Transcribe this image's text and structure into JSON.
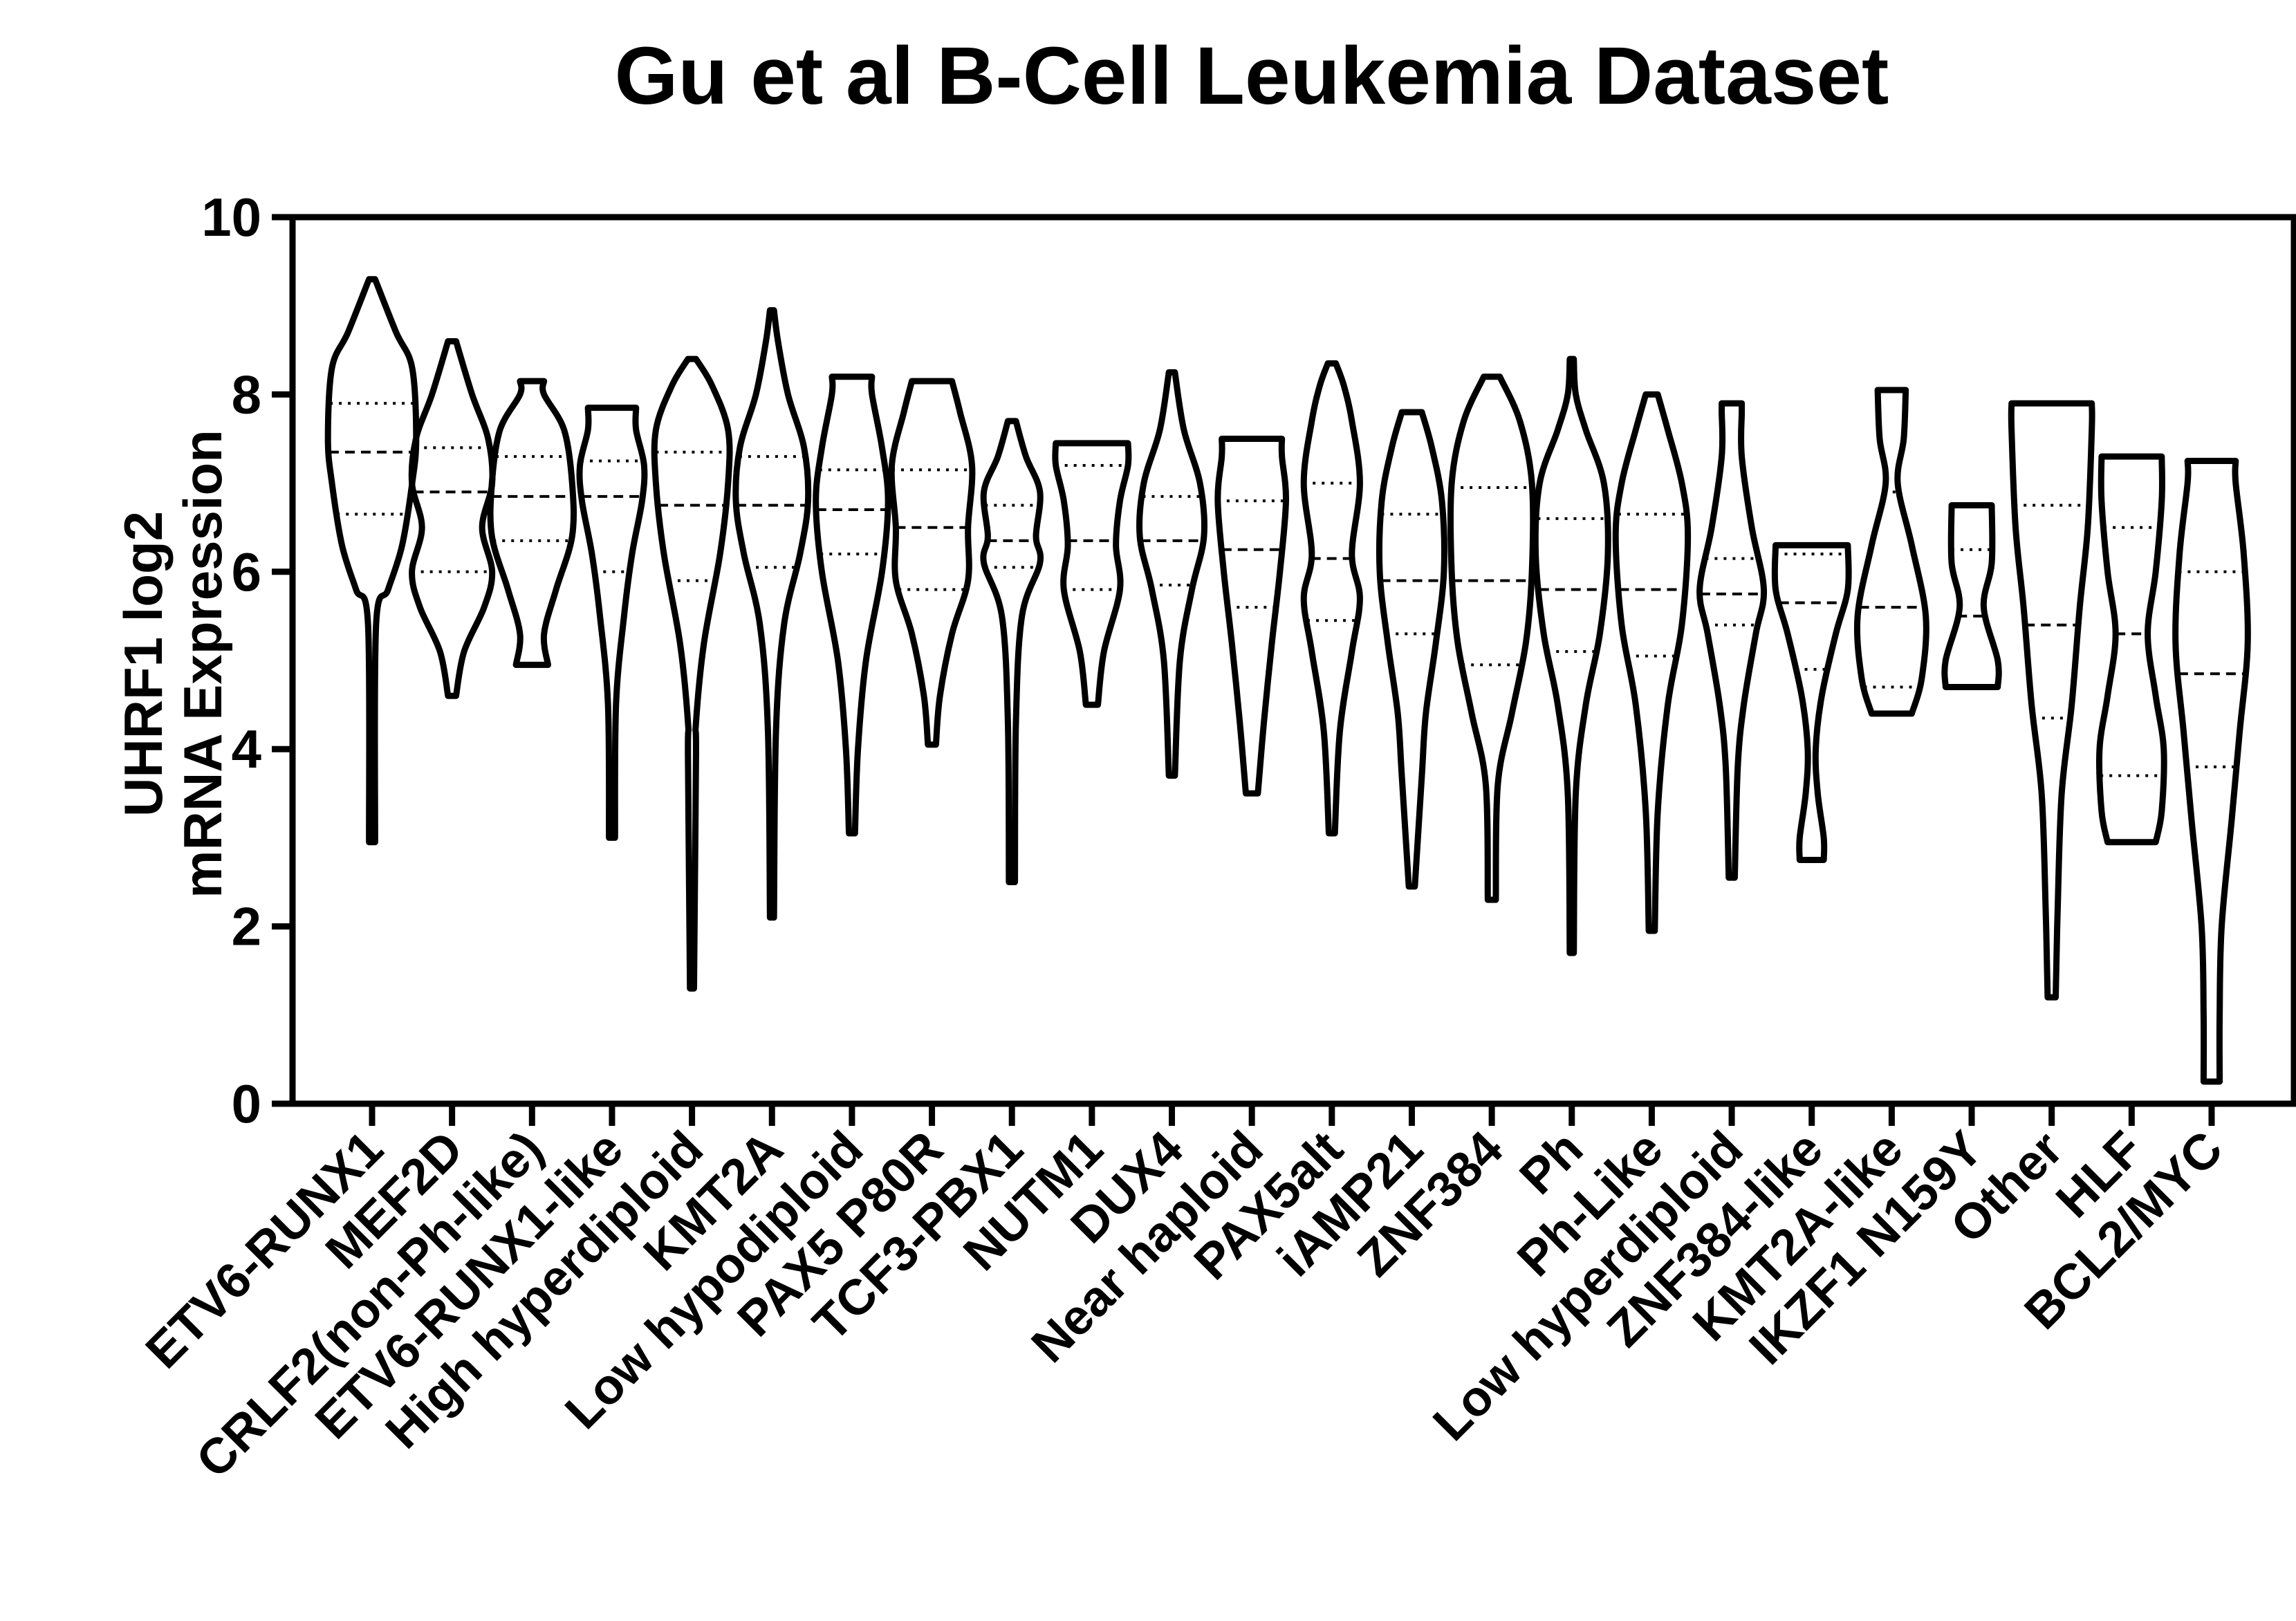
{
  "chart_data": {
    "type": "violin",
    "title": "Gu et al B-Cell Leukemia Dataset",
    "ylabel_lines": [
      "UHRF1 log2",
      "mRNA Expression"
    ],
    "xlabel": "",
    "ylim": [
      0,
      10
    ],
    "yticks": [
      0,
      2,
      4,
      6,
      8,
      10
    ],
    "grid": false,
    "line_color": "#000000",
    "categories": [
      "ETV6-RUNX1",
      "MEF2D",
      "CRLF2(non-Ph-like)",
      "ETV6-RUNX1-like",
      "High hyperdiploid",
      "KMT2A",
      "Low hypodiploid",
      "PAX5 P80R",
      "TCF3-PBX1",
      "NUTM1",
      "DUX4",
      "Near haploid",
      "PAX5alt",
      "iAMP21",
      "ZNF384",
      "Ph",
      "Ph-Like",
      "Low hyperdiploid",
      "ZNF384-like",
      "KMT2A-like",
      "IKZF1 N159Y",
      "Other",
      "HLF",
      "BCL2/MYC"
    ],
    "series": [
      {
        "min": 2.95,
        "max": 9.3,
        "q1": 6.65,
        "median": 7.35,
        "q3": 7.9,
        "shape": [
          [
            2.95,
            0.015
          ],
          [
            5.4,
            0.02
          ],
          [
            5.8,
            0.08
          ],
          [
            6.3,
            0.15
          ],
          [
            7.0,
            0.2
          ],
          [
            7.5,
            0.22
          ],
          [
            8.3,
            0.2
          ],
          [
            8.7,
            0.12
          ],
          [
            9.3,
            0.015
          ]
        ]
      },
      {
        "min": 4.6,
        "max": 8.6,
        "q1": 6.0,
        "median": 6.9,
        "q3": 7.4,
        "shape": [
          [
            4.6,
            0.02
          ],
          [
            5.1,
            0.06
          ],
          [
            5.6,
            0.16
          ],
          [
            6.0,
            0.2
          ],
          [
            6.5,
            0.15
          ],
          [
            7.0,
            0.2
          ],
          [
            7.5,
            0.18
          ],
          [
            8.0,
            0.1
          ],
          [
            8.6,
            0.02
          ]
        ]
      },
      {
        "min": 4.95,
        "max": 8.15,
        "q1": 6.35,
        "median": 6.85,
        "q3": 7.3,
        "shape": [
          [
            4.95,
            0.08
          ],
          [
            5.3,
            0.06
          ],
          [
            5.8,
            0.12
          ],
          [
            6.4,
            0.2
          ],
          [
            7.0,
            0.2
          ],
          [
            7.6,
            0.16
          ],
          [
            8.0,
            0.06
          ],
          [
            8.15,
            0.06
          ]
        ]
      },
      {
        "min": 3.0,
        "max": 7.85,
        "q1": 6.0,
        "median": 6.85,
        "q3": 7.25,
        "shape": [
          [
            3.0,
            0.015
          ],
          [
            4.5,
            0.02
          ],
          [
            5.5,
            0.06
          ],
          [
            6.2,
            0.1
          ],
          [
            6.8,
            0.15
          ],
          [
            7.2,
            0.16
          ],
          [
            7.6,
            0.12
          ],
          [
            7.85,
            0.12
          ]
        ]
      },
      {
        "min": 1.3,
        "max": 8.4,
        "q1": 5.9,
        "median": 6.75,
        "q3": 7.35,
        "shape": [
          [
            1.3,
            0.01
          ],
          [
            3.9,
            0.02
          ],
          [
            4.3,
            0.02
          ],
          [
            5.2,
            0.06
          ],
          [
            6.2,
            0.14
          ],
          [
            7.0,
            0.18
          ],
          [
            7.6,
            0.18
          ],
          [
            8.1,
            0.1
          ],
          [
            8.4,
            0.02
          ]
        ]
      },
      {
        "min": 2.1,
        "max": 8.95,
        "q1": 6.05,
        "median": 6.75,
        "q3": 7.3,
        "shape": [
          [
            2.1,
            0.01
          ],
          [
            4.2,
            0.02
          ],
          [
            5.4,
            0.06
          ],
          [
            6.2,
            0.14
          ],
          [
            6.8,
            0.18
          ],
          [
            7.4,
            0.16
          ],
          [
            8.0,
            0.08
          ],
          [
            8.6,
            0.03
          ],
          [
            8.95,
            0.01
          ]
        ]
      },
      {
        "min": 3.05,
        "max": 8.2,
        "q1": 6.2,
        "median": 6.7,
        "q3": 7.15,
        "shape": [
          [
            3.05,
            0.015
          ],
          [
            4.0,
            0.03
          ],
          [
            5.0,
            0.07
          ],
          [
            6.0,
            0.15
          ],
          [
            6.8,
            0.18
          ],
          [
            7.4,
            0.15
          ],
          [
            8.0,
            0.1
          ],
          [
            8.2,
            0.1
          ]
        ]
      },
      {
        "min": 4.05,
        "max": 8.15,
        "q1": 5.8,
        "median": 6.5,
        "q3": 7.15,
        "shape": [
          [
            4.05,
            0.02
          ],
          [
            4.6,
            0.04
          ],
          [
            5.3,
            0.1
          ],
          [
            5.9,
            0.18
          ],
          [
            6.5,
            0.18
          ],
          [
            7.2,
            0.2
          ],
          [
            7.8,
            0.14
          ],
          [
            8.15,
            0.1
          ]
        ]
      },
      {
        "min": 2.5,
        "max": 7.7,
        "q1": 6.05,
        "median": 6.35,
        "q3": 6.75,
        "shape": [
          [
            2.5,
            0.015
          ],
          [
            4.3,
            0.02
          ],
          [
            5.5,
            0.05
          ],
          [
            6.1,
            0.14
          ],
          [
            6.4,
            0.12
          ],
          [
            6.9,
            0.14
          ],
          [
            7.3,
            0.07
          ],
          [
            7.7,
            0.02
          ]
        ]
      },
      {
        "min": 4.5,
        "max": 7.45,
        "q1": 5.8,
        "median": 6.35,
        "q3": 7.2,
        "shape": [
          [
            4.5,
            0.03
          ],
          [
            5.1,
            0.06
          ],
          [
            5.8,
            0.14
          ],
          [
            6.3,
            0.12
          ],
          [
            6.8,
            0.14
          ],
          [
            7.2,
            0.18
          ],
          [
            7.45,
            0.18
          ]
        ]
      },
      {
        "min": 3.7,
        "max": 8.25,
        "q1": 5.85,
        "median": 6.35,
        "q3": 6.85,
        "shape": [
          [
            3.7,
            0.015
          ],
          [
            5.0,
            0.04
          ],
          [
            5.8,
            0.1
          ],
          [
            6.4,
            0.16
          ],
          [
            7.0,
            0.14
          ],
          [
            7.6,
            0.06
          ],
          [
            8.25,
            0.015
          ]
        ]
      },
      {
        "min": 3.5,
        "max": 7.5,
        "q1": 5.6,
        "median": 6.25,
        "q3": 6.8,
        "shape": [
          [
            3.5,
            0.03
          ],
          [
            4.3,
            0.06
          ],
          [
            5.2,
            0.1
          ],
          [
            6.0,
            0.14
          ],
          [
            6.8,
            0.17
          ],
          [
            7.3,
            0.15
          ],
          [
            7.5,
            0.15
          ]
        ]
      },
      {
        "min": 3.05,
        "max": 8.35,
        "q1": 5.45,
        "median": 6.15,
        "q3": 7.0,
        "shape": [
          [
            3.05,
            0.015
          ],
          [
            4.2,
            0.04
          ],
          [
            5.1,
            0.1
          ],
          [
            5.7,
            0.14
          ],
          [
            6.2,
            0.1
          ],
          [
            7.0,
            0.14
          ],
          [
            7.7,
            0.1
          ],
          [
            8.1,
            0.06
          ],
          [
            8.35,
            0.02
          ]
        ]
      },
      {
        "min": 2.45,
        "max": 7.8,
        "q1": 5.3,
        "median": 5.9,
        "q3": 6.65,
        "shape": [
          [
            2.45,
            0.015
          ],
          [
            3.7,
            0.05
          ],
          [
            4.4,
            0.07
          ],
          [
            5.2,
            0.12
          ],
          [
            6.0,
            0.16
          ],
          [
            6.8,
            0.15
          ],
          [
            7.4,
            0.1
          ],
          [
            7.8,
            0.05
          ]
        ]
      },
      {
        "min": 2.3,
        "max": 8.2,
        "q1": 4.95,
        "median": 5.9,
        "q3": 6.95,
        "shape": [
          [
            2.3,
            0.02
          ],
          [
            3.6,
            0.03
          ],
          [
            4.4,
            0.1
          ],
          [
            5.2,
            0.17
          ],
          [
            6.0,
            0.2
          ],
          [
            7.0,
            0.2
          ],
          [
            7.7,
            0.14
          ],
          [
            8.2,
            0.04
          ]
        ]
      },
      {
        "min": 1.7,
        "max": 8.4,
        "q1": 5.1,
        "median": 5.8,
        "q3": 6.6,
        "shape": [
          [
            1.7,
            0.01
          ],
          [
            3.5,
            0.02
          ],
          [
            4.5,
            0.07
          ],
          [
            5.3,
            0.14
          ],
          [
            6.2,
            0.18
          ],
          [
            7.0,
            0.16
          ],
          [
            7.6,
            0.07
          ],
          [
            8.0,
            0.02
          ],
          [
            8.4,
            0.01
          ]
        ]
      },
      {
        "min": 1.95,
        "max": 8.0,
        "q1": 5.05,
        "median": 5.8,
        "q3": 6.65,
        "shape": [
          [
            1.95,
            0.015
          ],
          [
            3.3,
            0.03
          ],
          [
            4.5,
            0.08
          ],
          [
            5.4,
            0.15
          ],
          [
            6.4,
            0.18
          ],
          [
            7.0,
            0.15
          ],
          [
            7.6,
            0.08
          ],
          [
            8.0,
            0.03
          ]
        ]
      },
      {
        "min": 2.55,
        "max": 7.9,
        "q1": 5.4,
        "median": 5.75,
        "q3": 6.15,
        "shape": [
          [
            2.55,
            0.015
          ],
          [
            3.8,
            0.03
          ],
          [
            4.5,
            0.06
          ],
          [
            5.3,
            0.12
          ],
          [
            5.8,
            0.16
          ],
          [
            6.5,
            0.1
          ],
          [
            7.3,
            0.05
          ],
          [
            7.8,
            0.05
          ],
          [
            7.9,
            0.05
          ]
        ]
      },
      {
        "min": 2.75,
        "max": 6.3,
        "q1": 4.9,
        "median": 5.65,
        "q3": 6.2,
        "shape": [
          [
            2.75,
            0.06
          ],
          [
            3.0,
            0.06
          ],
          [
            3.5,
            0.03
          ],
          [
            4.0,
            0.02
          ],
          [
            4.6,
            0.05
          ],
          [
            5.3,
            0.12
          ],
          [
            5.8,
            0.18
          ],
          [
            6.3,
            0.18
          ]
        ]
      },
      {
        "min": 4.4,
        "max": 8.05,
        "q1": 4.7,
        "median": 5.6,
        "q3": 6.9,
        "shape": [
          [
            4.4,
            0.1
          ],
          [
            4.8,
            0.15
          ],
          [
            5.5,
            0.17
          ],
          [
            6.3,
            0.1
          ],
          [
            7.0,
            0.03
          ],
          [
            7.5,
            0.06
          ],
          [
            8.05,
            0.07
          ]
        ]
      },
      {
        "min": 4.7,
        "max": 6.75,
        "q1": 4.7,
        "median": 5.5,
        "q3": 6.25,
        "shape": [
          [
            4.7,
            0.13
          ],
          [
            5.0,
            0.13
          ],
          [
            5.6,
            0.06
          ],
          [
            6.1,
            0.1
          ],
          [
            6.75,
            0.1
          ]
        ]
      },
      {
        "min": 1.2,
        "max": 7.9,
        "q1": 4.35,
        "median": 5.4,
        "q3": 6.75,
        "shape": [
          [
            1.2,
            0.02
          ],
          [
            2.2,
            0.03
          ],
          [
            3.5,
            0.05
          ],
          [
            4.5,
            0.1
          ],
          [
            5.6,
            0.14
          ],
          [
            6.5,
            0.18
          ],
          [
            7.6,
            0.2
          ],
          [
            7.9,
            0.2
          ]
        ]
      },
      {
        "min": 2.95,
        "max": 7.3,
        "q1": 3.7,
        "median": 5.3,
        "q3": 6.5,
        "shape": [
          [
            2.95,
            0.12
          ],
          [
            3.3,
            0.15
          ],
          [
            4.0,
            0.16
          ],
          [
            4.6,
            0.12
          ],
          [
            5.3,
            0.08
          ],
          [
            6.0,
            0.12
          ],
          [
            6.8,
            0.15
          ],
          [
            7.3,
            0.15
          ]
        ]
      },
      {
        "min": 0.25,
        "max": 7.25,
        "q1": 3.8,
        "median": 4.85,
        "q3": 6.0,
        "shape": [
          [
            0.25,
            0.04
          ],
          [
            1.0,
            0.04
          ],
          [
            2.0,
            0.05
          ],
          [
            3.2,
            0.1
          ],
          [
            4.2,
            0.14
          ],
          [
            5.2,
            0.18
          ],
          [
            6.2,
            0.16
          ],
          [
            7.0,
            0.12
          ],
          [
            7.25,
            0.12
          ]
        ]
      }
    ]
  }
}
